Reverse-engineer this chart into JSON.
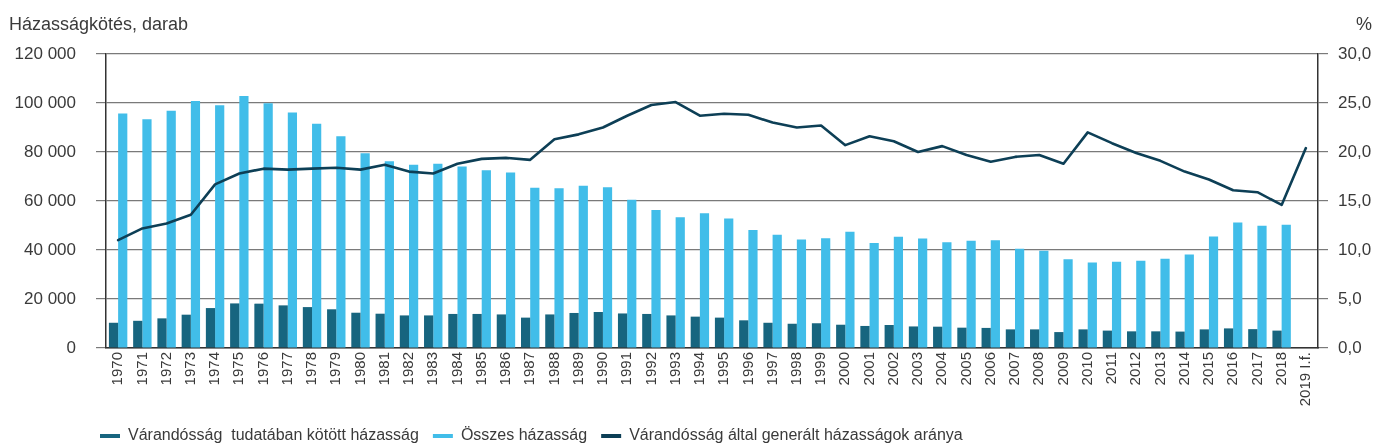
{
  "chart_data": {
    "type": "bar",
    "ylabel": "Házasságkötés, darab",
    "y2label": "%",
    "categories": [
      "1970",
      "1971",
      "1972",
      "1973",
      "1974",
      "1975",
      "1976",
      "1977",
      "1978",
      "1979",
      "1980",
      "1981",
      "1982",
      "1983",
      "1984",
      "1985",
      "1986",
      "1987",
      "1988",
      "1989",
      "1990",
      "1991",
      "1992",
      "1993",
      "1994",
      "1995",
      "1996",
      "1997",
      "1998",
      "1999",
      "2000",
      "2001",
      "2002",
      "2003",
      "2004",
      "2005",
      "2006",
      "2007",
      "2008",
      "2009",
      "2010",
      "2011",
      "2012",
      "2013",
      "2014",
      "2015",
      "2016",
      "2017",
      "2018",
      "2019 I.f."
    ],
    "series": [
      {
        "name": "Várandósság  tudatában kötött házasság",
        "color": "#17657f",
        "values": [
          10300,
          11100,
          12100,
          13600,
          16300,
          18200,
          18100,
          17400,
          16700,
          15800,
          14400,
          14000,
          13300,
          13300,
          13900,
          13900,
          13700,
          12400,
          13700,
          14300,
          14700,
          14100,
          13900,
          13300,
          12800,
          12400,
          11300,
          10300,
          9900,
          10100,
          9500,
          9000,
          9400,
          8800,
          8700,
          8300,
          8200,
          7600,
          7600,
          6500,
          7600,
          7100,
          6800,
          6800,
          6700,
          7600,
          8000,
          7700,
          7100,
          null
        ]
      },
      {
        "name": "Összes házasság",
        "color": "#41bde9",
        "values": [
          95700,
          93400,
          96800,
          100800,
          99100,
          102900,
          99900,
          96100,
          91500,
          86400,
          79500,
          76200,
          74800,
          75200,
          74100,
          72600,
          71600,
          65400,
          65200,
          66200,
          65600,
          60500,
          56300,
          53400,
          55000,
          52900,
          48200,
          46200,
          44300,
          44800,
          47400,
          42900,
          45400,
          44700,
          43200,
          43800,
          44000,
          40500,
          39700,
          36200,
          34900,
          35200,
          35600,
          36400,
          38200,
          45500,
          51200,
          49900,
          50300,
          null
        ]
      },
      {
        "name": "Várandósság által generált házasságok aránya",
        "type": "line",
        "axis": "y2",
        "color": "#0d3f56",
        "values": [
          11.0,
          12.2,
          12.7,
          13.6,
          16.7,
          17.8,
          18.3,
          18.2,
          18.3,
          18.4,
          18.2,
          18.7,
          18.0,
          17.8,
          18.8,
          19.3,
          19.4,
          19.2,
          21.3,
          21.8,
          22.5,
          23.7,
          24.8,
          25.1,
          23.7,
          23.9,
          23.8,
          23.0,
          22.5,
          22.7,
          20.7,
          21.6,
          21.1,
          20.0,
          20.6,
          19.7,
          19.0,
          19.5,
          19.7,
          18.8,
          22.0,
          20.9,
          19.9,
          19.1,
          18.0,
          17.2,
          16.1,
          15.9,
          14.6,
          20.4
        ]
      }
    ],
    "ylim": [
      0,
      120000
    ],
    "yticks": [
      0,
      {
        "value": 20000,
        "label": "20 000"
      },
      {
        "value": 40000,
        "label": "40 000"
      },
      {
        "value": 60000,
        "label": "60 000"
      },
      {
        "value": 80000,
        "label": "80 000"
      },
      {
        "value": 100000,
        "label": "100 000"
      },
      {
        "value": 120000,
        "label": "120 000"
      }
    ],
    "y2lim": [
      0,
      30
    ],
    "y2ticks": [
      {
        "value": 0,
        "label": "0,0"
      },
      {
        "value": 5,
        "label": "5,0"
      },
      {
        "value": 10,
        "label": "10,0"
      },
      {
        "value": 15,
        "label": "15,0"
      },
      {
        "value": 20,
        "label": "20,0"
      },
      {
        "value": 25,
        "label": "25,0"
      },
      {
        "value": 30,
        "label": "30,0"
      }
    ],
    "grid": "y",
    "legend": "bottom left",
    "marker": "none"
  }
}
